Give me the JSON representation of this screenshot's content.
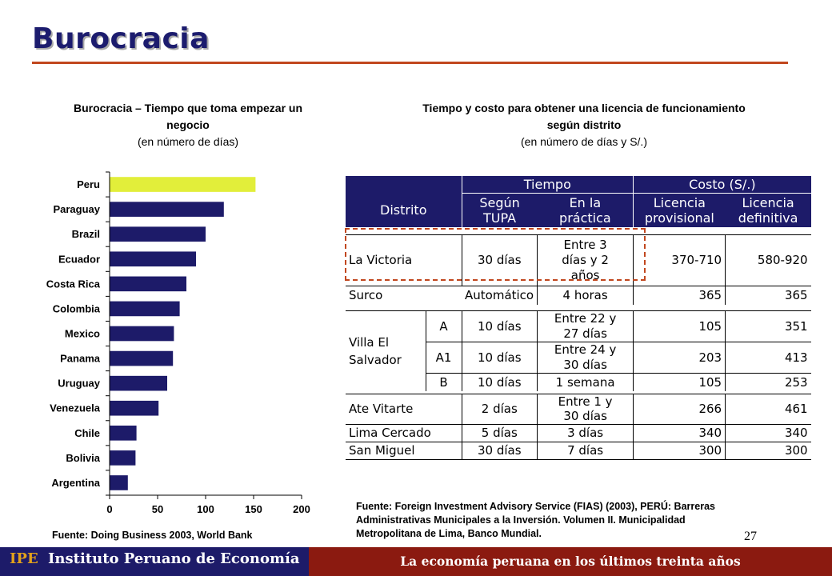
{
  "header": {
    "title": "Burocracia"
  },
  "left_panel": {
    "title": "Burocracia – Tiempo que toma empezar un negocio",
    "subtitle": "(en número de días)",
    "source": "Fuente: Doing Business 2003, World Bank"
  },
  "right_panel": {
    "title": "Tiempo y costo para obtener una licencia de funcionamiento según distrito",
    "subtitle": "(en número de días y S/.)",
    "source_lines": [
      "Fuente: Foreign Investment Advisory Service (FIAS) (2003), PERÚ: Barreras",
      "Administrativas Municipales a la Inversión. Volumen II. Municipalidad",
      "Metropolitana de Lima, Banco Mundial."
    ],
    "table": {
      "header_groups": {
        "tiempo": "Tiempo",
        "costo": "Costo (S/.)"
      },
      "headers": {
        "distrito": "Distrito",
        "segun_tupa": [
          "Según",
          "TUPA"
        ],
        "en_la_practica": [
          "En la",
          "práctica"
        ],
        "licencia_provisional": [
          "Licencia",
          "provisional"
        ],
        "licencia_definitiva": [
          "Licencia",
          "definitiva"
        ]
      },
      "rows": [
        {
          "distrito": "La Victoria",
          "sub": "",
          "tupa": "30 días",
          "practica": [
            "Entre 3",
            "días y 2",
            "años"
          ],
          "provisional": "370-710",
          "definitiva": "580-920"
        },
        {
          "distrito": "Surco",
          "sub": "",
          "tupa": "Automático",
          "practica": [
            "4 horas"
          ],
          "provisional": "365",
          "definitiva": "365"
        },
        {
          "distrito": "Villa El Salvador",
          "sub": "A",
          "tupa": "10 días",
          "practica": [
            "Entre 22 y",
            "27 días"
          ],
          "provisional": "105",
          "definitiva": "351"
        },
        {
          "distrito": "",
          "sub": "A1",
          "tupa": "10 días",
          "practica": [
            "Entre 24 y",
            "30 días"
          ],
          "provisional": "203",
          "definitiva": "413"
        },
        {
          "distrito": "",
          "sub": "B",
          "tupa": "10 días",
          "practica": [
            "1 semana"
          ],
          "provisional": "105",
          "definitiva": "253"
        },
        {
          "distrito": "Ate Vitarte",
          "sub": "",
          "tupa": "2 días",
          "practica": [
            "Entre 1 y",
            "30 días"
          ],
          "provisional": "266",
          "definitiva": "461"
        },
        {
          "distrito": "Lima Cercado",
          "sub": "",
          "tupa": "5 días",
          "practica": [
            "3 días"
          ],
          "provisional": "340",
          "definitiva": "340"
        },
        {
          "distrito": "San Miguel",
          "sub": "",
          "tupa": "30 días",
          "practica": [
            "7 días"
          ],
          "provisional": "300",
          "definitiva": "300"
        }
      ]
    }
  },
  "page_number": "27",
  "footer": {
    "ipe": "IPE",
    "institute": "Instituto Peruano de Economía",
    "slogan": "La economía peruana en los últimos treinta años"
  },
  "chart_data": {
    "type": "bar",
    "orientation": "horizontal",
    "categories": [
      "Peru",
      "Paraguay",
      "Brazil",
      "Ecuador",
      "Costa Rica",
      "Colombia",
      "Mexico",
      "Panama",
      "Uruguay",
      "Venezuela",
      "Chile",
      "Bolivia",
      "Argentina"
    ],
    "values": [
      152,
      119,
      100,
      90,
      80,
      73,
      67,
      66,
      60,
      51,
      28,
      27,
      19
    ],
    "highlight": "Peru",
    "bar_color": "#1d1b69",
    "highlight_color": "#e2ee3a",
    "xlim": [
      0,
      200
    ],
    "xticks": [
      0,
      50,
      100,
      150,
      200
    ],
    "title": "Burocracia – Tiempo que toma empezar un negocio",
    "xlabel": "",
    "ylabel": "",
    "grid": false
  }
}
